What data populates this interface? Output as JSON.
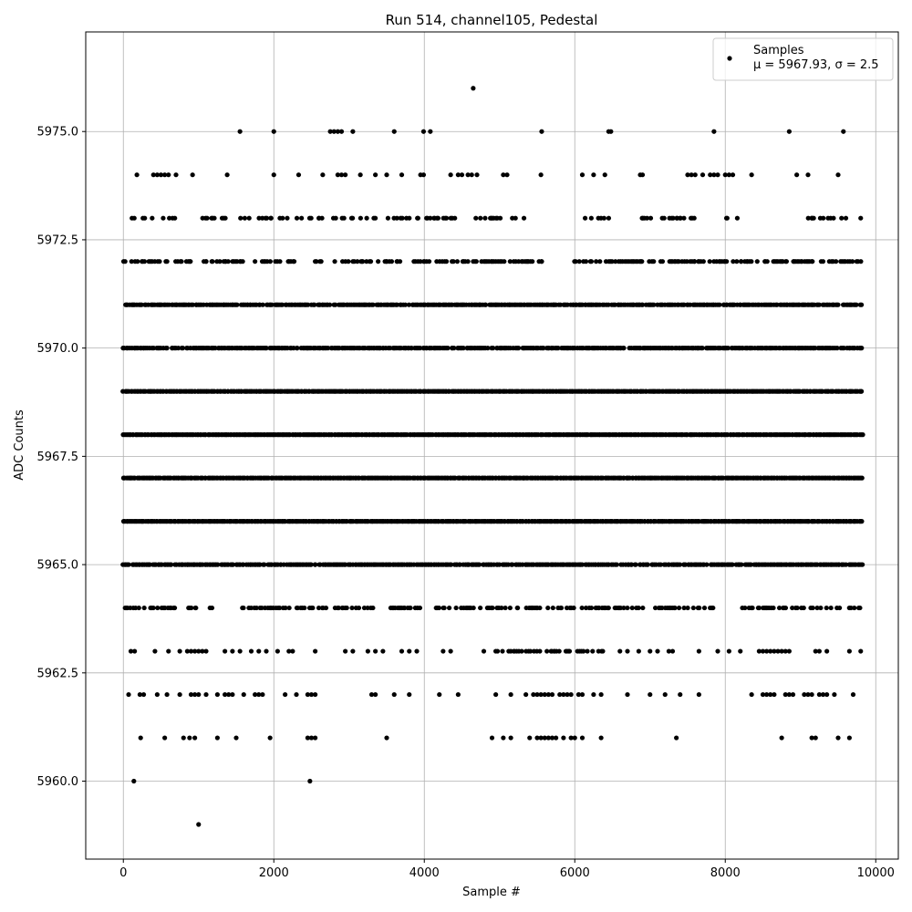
{
  "chart_data": {
    "type": "scatter",
    "title": "Run 514, channel105, Pedestal",
    "xlabel": "Sample #",
    "ylabel": "ADC Counts",
    "xlim": [
      -500,
      10300
    ],
    "ylim": [
      5958.2,
      5977.3
    ],
    "xticks": [
      0,
      2000,
      4000,
      6000,
      8000,
      10000
    ],
    "xtick_labels": [
      "0",
      "2000",
      "4000",
      "6000",
      "8000",
      "10000"
    ],
    "yticks": [
      5960.0,
      5962.5,
      5965.0,
      5967.5,
      5970.0,
      5972.5,
      5975.0
    ],
    "ytick_labels": [
      "5960.0",
      "5962.5",
      "5965.0",
      "5967.5",
      "5970.0",
      "5972.5",
      "5975.0"
    ],
    "grid": true,
    "legend_position": "top-right",
    "marker_color": "#000000",
    "series": [
      {
        "name": "Samples",
        "n_samples": 9800,
        "mu": 5967.93,
        "sigma": 2.5,
        "levels": [
          {
            "y": 5976,
            "x": [
              4650
            ]
          },
          {
            "y": 5975,
            "x": [
              1550,
              2000,
              2750,
              2800,
              2850,
              2900,
              3050,
              3600,
              3990,
              4080,
              5560,
              6450,
              6480,
              7850,
              8850,
              9570
            ]
          },
          {
            "y": 5974,
            "x": [
              180,
              400,
              450,
              500,
              550,
              600,
              700,
              920,
              1380,
              2000,
              2330,
              2650,
              2850,
              2900,
              2950,
              3150,
              3350,
              3500,
              3700,
              3950,
              3990,
              4350,
              4450,
              4500,
              4580,
              4630,
              4700,
              5050,
              5100,
              5550,
              6100,
              6250,
              6400,
              6870,
              6900,
              7500,
              7550,
              7600,
              7700,
              7800,
              7850,
              7900,
              8000,
              8050,
              8100,
              8350,
              8950,
              9100,
              9500
            ]
          },
          {
            "y": 5973,
            "fill": [
              [
                120,
                320
              ],
              [
                350,
                720
              ],
              [
                1050,
                1400
              ],
              [
                1550,
                2650
              ],
              [
                2750,
                3400
              ],
              [
                3500,
                4450
              ],
              [
                4650,
                5050
              ],
              [
                5100,
                5350
              ],
              [
                6100,
                6500
              ],
              [
                6850,
                7600
              ],
              [
                7750,
                8350
              ],
              [
                9000,
                9600
              ]
            ],
            "density": 0.35,
            "x": [
              9800
            ]
          },
          {
            "y": 5972,
            "fill": [
              [
                0,
                900
              ],
              [
                1050,
                1750
              ],
              [
                1850,
                2300
              ],
              [
                2550,
                4100
              ],
              [
                4150,
                5100
              ],
              [
                5150,
                5600
              ],
              [
                6000,
                6350
              ],
              [
                6400,
                8850
              ],
              [
                8900,
                9820
              ]
            ],
            "density": 0.55
          },
          {
            "y": 5971,
            "fill": [
              [
                0,
                2750
              ],
              [
                2800,
                5800
              ],
              [
                5850,
                9820
              ]
            ],
            "density": 0.9
          },
          {
            "y": 5970,
            "fill": [
              [
                0,
                9820
              ]
            ],
            "density": 0.9
          },
          {
            "y": 5969,
            "fill": [
              [
                0,
                9820
              ]
            ],
            "density": 1.0
          },
          {
            "y": 5968,
            "fill": [
              [
                0,
                9820
              ]
            ],
            "density": 1.0
          },
          {
            "y": 5967,
            "fill": [
              [
                0,
                9820
              ]
            ],
            "density": 1.0
          },
          {
            "y": 5966,
            "fill": [
              [
                0,
                9820
              ]
            ],
            "density": 1.0
          },
          {
            "y": 5965,
            "fill": [
              [
                0,
                9820
              ]
            ],
            "density": 0.9
          },
          {
            "y": 5964,
            "fill": [
              [
                0,
                700
              ],
              [
                850,
                1250
              ],
              [
                1500,
                3400
              ],
              [
                3500,
                4050
              ],
              [
                4150,
                6850
              ],
              [
                6900,
                7850
              ],
              [
                8200,
                9820
              ]
            ],
            "density": 0.45
          },
          {
            "y": 5963,
            "fill": [
              [
                4800,
                6400
              ]
            ],
            "density": 0.4,
            "x": [
              100,
              150,
              420,
              600,
              750,
              850,
              900,
              950,
              1000,
              1050,
              1100,
              1350,
              1450,
              1550,
              1700,
              1800,
              1900,
              2050,
              2200,
              2250,
              2550,
              2950,
              3050,
              3250,
              3350,
              3450,
              3700,
              3800,
              3900,
              4250,
              4350,
              6600,
              6700,
              6850,
              7000,
              7100,
              7250,
              7300,
              7650,
              7900,
              8050,
              8200,
              8450,
              8500,
              8550,
              8600,
              8650,
              8700,
              8750,
              8800,
              8850,
              9200,
              9250,
              9350,
              9650,
              9800
            ]
          },
          {
            "y": 5962,
            "x": [
              70,
              220,
              270,
              450,
              580,
              750,
              900,
              950,
              1000,
              1100,
              1250,
              1350,
              1400,
              1450,
              1600,
              1750,
              1800,
              1850,
              2150,
              2300,
              2450,
              2500,
              2550,
              3300,
              3350,
              3600,
              3800,
              4200,
              4450,
              4950,
              5150,
              5350,
              5450,
              5500,
              5550,
              5600,
              5650,
              5700,
              5800,
              5850,
              5900,
              5950,
              6050,
              6100,
              6250,
              6350,
              6700,
              7000,
              7200,
              7400,
              7650,
              8350,
              8500,
              8550,
              8600,
              8650,
              8800,
              8850,
              8900,
              9050,
              9100,
              9150,
              9250,
              9300,
              9350,
              9450,
              9700
            ]
          },
          {
            "y": 5961,
            "x": [
              230,
              550,
              800,
              880,
              950,
              1250,
              1500,
              1950,
              2450,
              2500,
              2550,
              3500,
              4900,
              5050,
              5150,
              5400,
              5500,
              5550,
              5600,
              5650,
              5700,
              5750,
              5850,
              5950,
              6000,
              6100,
              6350,
              7350,
              8750,
              9150,
              9200,
              9500,
              9650
            ]
          },
          {
            "y": 5960,
            "x": [
              140,
              2480
            ]
          },
          {
            "y": 5959,
            "x": [
              1000
            ]
          }
        ]
      }
    ],
    "legend": {
      "label": "Samples",
      "stats_text": "μ = 5967.93, σ = 2.5"
    }
  }
}
